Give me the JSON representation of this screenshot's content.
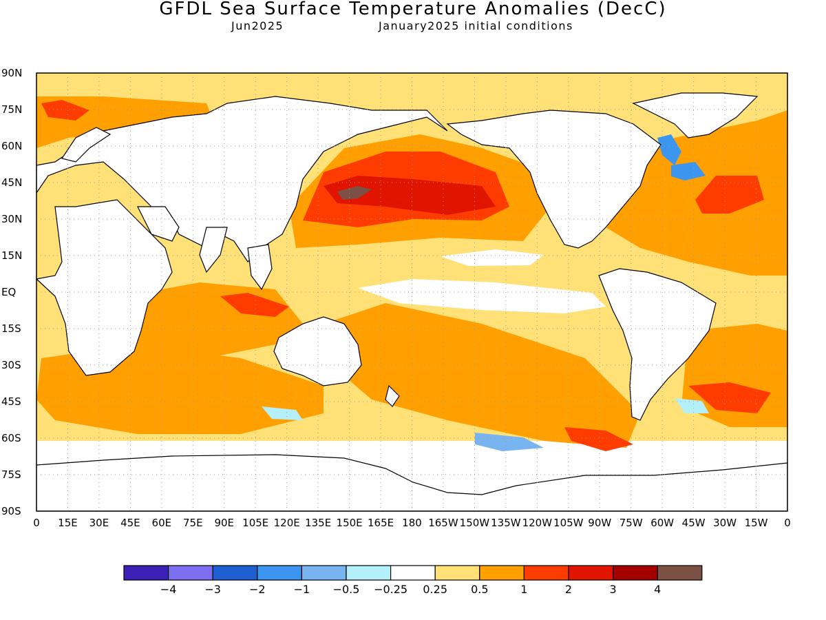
{
  "map": {
    "title": "GFDL Sea Surface Temperature Anomalies (DecC)",
    "subtitle_left": "Jun2025",
    "subtitle_right": "January2025 initial conditions",
    "lat_labels": [
      "90N",
      "75N",
      "60N",
      "45N",
      "30N",
      "15N",
      "EQ",
      "15S",
      "30S",
      "45S",
      "60S",
      "75S",
      "90S"
    ],
    "lon_labels": [
      "0",
      "15E",
      "30E",
      "45E",
      "60E",
      "75E",
      "90E",
      "105E",
      "120E",
      "135E",
      "150E",
      "165E",
      "180",
      "165W",
      "150W",
      "135W",
      "120W",
      "105W",
      "90W",
      "75W",
      "60W",
      "45W",
      "30W",
      "15W",
      "0"
    ],
    "land_color": "#ffffff",
    "coastline_color": "#000000"
  },
  "colorbar": {
    "colors": [
      "#3c1fb4",
      "#7d6ef0",
      "#1f5fd2",
      "#3c96f0",
      "#78b4f0",
      "#b4f0fa",
      "#ffffff",
      "#ffe178",
      "#ffa000",
      "#ff3c00",
      "#e11400",
      "#a50000",
      "#7b5146"
    ],
    "tick_labels": [
      "-4",
      "-3",
      "-2",
      "-1",
      "-0.5",
      "-0.25",
      "0.25",
      "0.5",
      "1",
      "2",
      "3",
      "4"
    ]
  }
}
